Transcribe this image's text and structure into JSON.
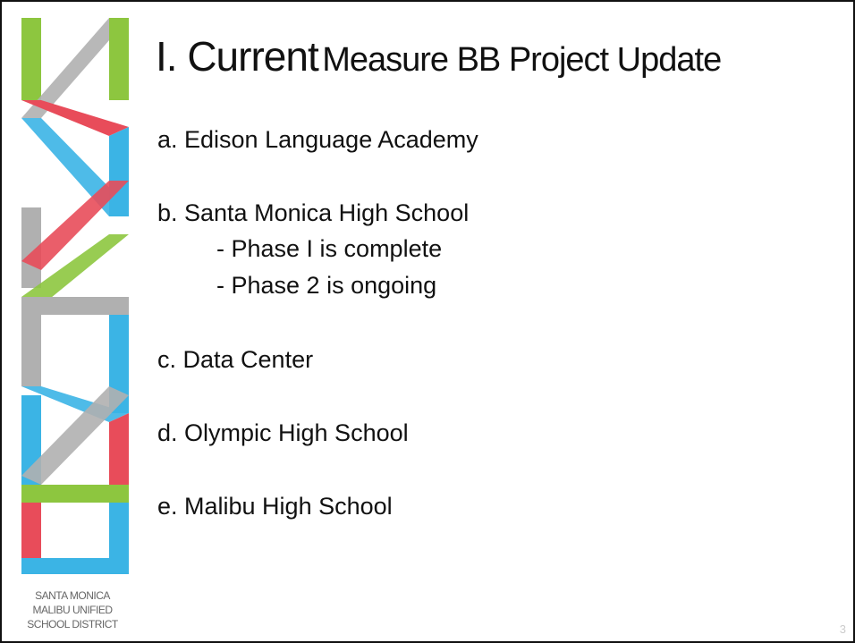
{
  "slide": {
    "title_lead": "I. Current",
    "title_rest": "Measure BB Project Update",
    "items": [
      {
        "text": "a. Edison Language Academy",
        "subitems": []
      },
      {
        "text": "b. Santa Monica High School",
        "subitems": [
          "- Phase I is complete",
          "- Phase 2 is ongoing"
        ]
      },
      {
        "text": "c. Data Center",
        "subitems": []
      },
      {
        "text": "d. Olympic High School",
        "subitems": []
      },
      {
        "text": "e. Malibu High School",
        "subitems": []
      }
    ],
    "logo_text": [
      "SANTA MONICA",
      "MALIBU UNIFIED",
      "SCHOOL DISTRICT"
    ],
    "page_number": "3"
  }
}
